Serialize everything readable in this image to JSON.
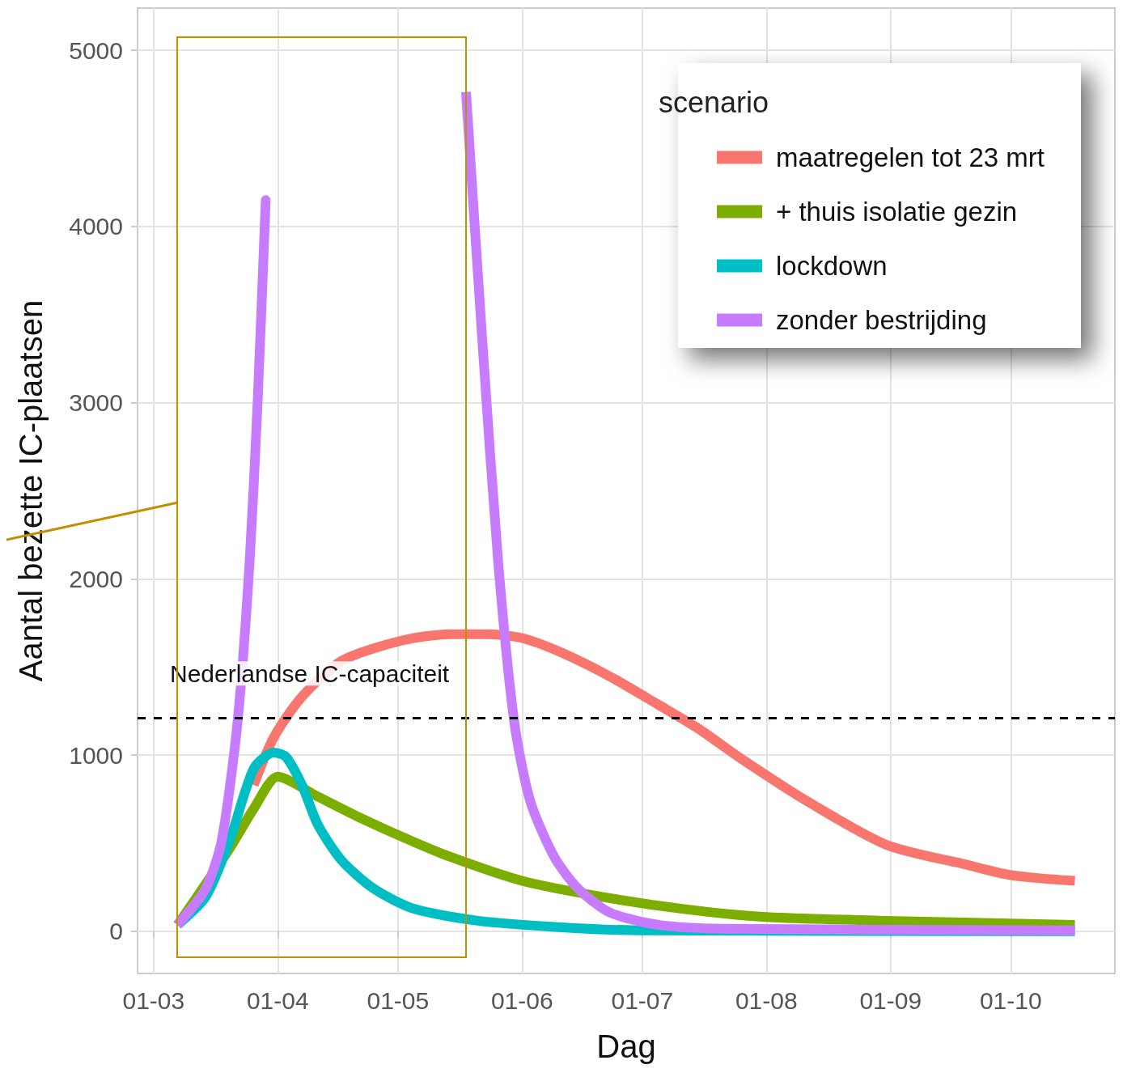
{
  "chart_data": {
    "type": "line",
    "xlabel": "Dag",
    "ylabel": "Aantal bezette IC-plaatsen",
    "legend_title": "scenario",
    "xlim": [
      "--02-26",
      "--10-27"
    ],
    "ylim": [
      -240,
      5240
    ],
    "xticks": [
      {
        "value": "--03-01",
        "label": "01-03"
      },
      {
        "value": "--04-01",
        "label": "01-04"
      },
      {
        "value": "--05-01",
        "label": "01-05"
      },
      {
        "value": "--06-01",
        "label": "01-06"
      },
      {
        "value": "--07-01",
        "label": "01-07"
      },
      {
        "value": "--08-01",
        "label": "01-08"
      },
      {
        "value": "--09-01",
        "label": "01-09"
      },
      {
        "value": "--10-01",
        "label": "01-10"
      }
    ],
    "yticks": [
      0,
      1000,
      2000,
      3000,
      4000,
      5000
    ],
    "grid": true,
    "legend": "top right",
    "marker": "none",
    "line_style": "solid",
    "ref_lines": [
      {
        "axis": "y",
        "value": 1210,
        "label": "Nederlandse IC-capaciteit",
        "color": "#000000",
        "line_style": "dashed"
      }
    ],
    "series": [
      {
        "name": "maatregelen tot 23 mrt",
        "color": "#f8766d",
        "x": [
          "--03-26",
          "--03-31",
          "--04-07",
          "--04-17",
          "--05-02",
          "--05-14",
          "--05-23",
          "--06-01",
          "--06-11",
          "--06-23",
          "--07-05",
          "--07-15",
          "--07-25",
          "--08-11",
          "--08-31",
          "--09-20",
          "--10-01",
          "--10-17"
        ],
        "values": [
          830,
          1100,
          1330,
          1535,
          1650,
          1686,
          1686,
          1664,
          1580,
          1445,
          1286,
          1150,
          990,
          740,
          490,
          377,
          318,
          286
        ]
      },
      {
        "name": "+ thuis isolatie gezin",
        "color": "#7cae00",
        "x": [
          "--03-07",
          "--03-20",
          "--03-26",
          "--04-01",
          "--04-11",
          "--04-21",
          "--05-02",
          "--05-14",
          "--06-01",
          "--06-21",
          "--07-11",
          "--07-31",
          "--08-31",
          "--10-17"
        ],
        "values": [
          36,
          470,
          695,
          877,
          764,
          650,
          536,
          423,
          286,
          195,
          127,
          82,
          59,
          36
        ]
      },
      {
        "name": "lockdown",
        "color": "#00bfc4",
        "x": [
          "--03-07",
          "--03-14",
          "--03-20",
          "--03-26",
          "--03-31",
          "--04-03",
          "--04-07",
          "--04-11",
          "--04-17",
          "--04-25",
          "--05-05",
          "--05-21",
          "--06-10",
          "--06-30",
          "--10-17"
        ],
        "values": [
          36,
          195,
          514,
          923,
          1014,
          991,
          832,
          605,
          400,
          241,
          127,
          59,
          23,
          5,
          0
        ]
      },
      {
        "name": "zonder bestrijding",
        "color": "#c77cff",
        "x": [
          "--03-07",
          "--03-14",
          "--03-18",
          "--03-22",
          "--03-25",
          "--03-27",
          "--03-29",
          "--04-20",
          "--05-18",
          "--05-22",
          "--05-26",
          "--05-30",
          "--06-03",
          "--06-09",
          "--06-15",
          "--06-23",
          "--07-05",
          "--07-21",
          "--10-17"
        ],
        "values": [
          36,
          241,
          514,
          1195,
          2105,
          3014,
          4150,
          null,
          4764,
          3377,
          2105,
          1195,
          741,
          423,
          241,
          105,
          36,
          14,
          5
        ]
      }
    ]
  }
}
